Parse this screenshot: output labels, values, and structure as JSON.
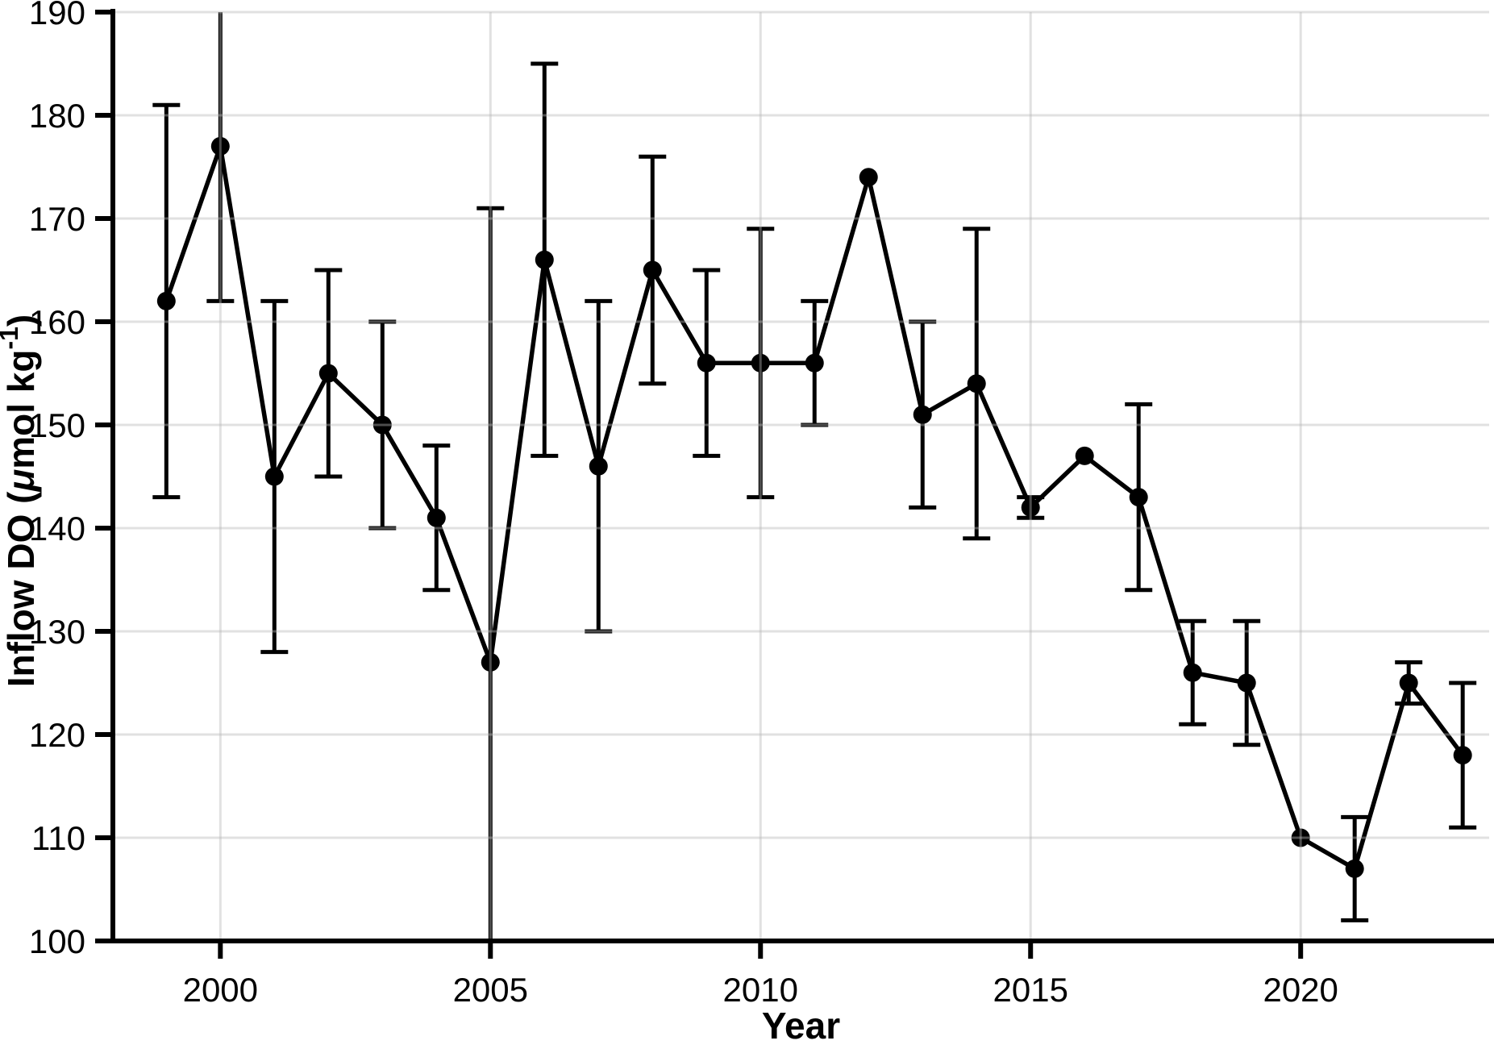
{
  "figure": {
    "background": "#ffffff"
  },
  "chart_data": {
    "type": "line",
    "title": "",
    "xlabel": "Year",
    "ylabel": "Inflow DO (μmol kg⁻¹)",
    "ylabel_parts": {
      "prefix": "Inflow DO (",
      "mu": "μ",
      "mid": "mol kg",
      "sup": "-1",
      "suffix": ")"
    },
    "x": [
      1999,
      2000,
      2001,
      2002,
      2003,
      2004,
      2005,
      2006,
      2007,
      2008,
      2009,
      2010,
      2011,
      2012,
      2013,
      2014,
      2015,
      2016,
      2017,
      2018,
      2019,
      2020,
      2021,
      2022,
      2023
    ],
    "series": [
      {
        "name": "Inflow DO",
        "values": [
          162,
          177,
          145,
          155,
          150,
          141,
          127,
          166,
          146,
          165,
          156,
          156,
          156,
          174,
          151,
          154,
          142,
          147,
          143,
          126,
          125,
          110,
          107,
          125,
          118
        ],
        "err_lo": [
          143,
          162,
          128,
          145,
          140,
          134,
          null,
          147,
          130,
          154,
          147,
          143,
          150,
          null,
          142,
          139,
          141,
          null,
          134,
          121,
          119,
          null,
          102,
          123,
          111
        ],
        "err_hi": [
          181,
          null,
          162,
          165,
          160,
          148,
          171,
          185,
          162,
          176,
          165,
          169,
          162,
          null,
          160,
          169,
          143,
          null,
          152,
          131,
          131,
          null,
          112,
          127,
          125
        ]
      }
    ],
    "error_clip": {
      "top_years": [
        2000
      ],
      "bottom_years": [
        2005
      ]
    },
    "xticks": [
      2000,
      2005,
      2010,
      2015,
      2020
    ],
    "yticks": [
      100,
      110,
      120,
      130,
      140,
      150,
      160,
      170,
      180,
      190
    ],
    "xlim": [
      1998.01,
      2023.49
    ],
    "ylim": [
      100,
      190
    ],
    "grid": true,
    "legend": "none",
    "colors": {
      "line": "#000000",
      "marker": "#000000",
      "error_bar": "#000000",
      "grid": "#b7b7b7",
      "axis": "#000000",
      "text": "#000000",
      "background": "#ffffff"
    }
  }
}
